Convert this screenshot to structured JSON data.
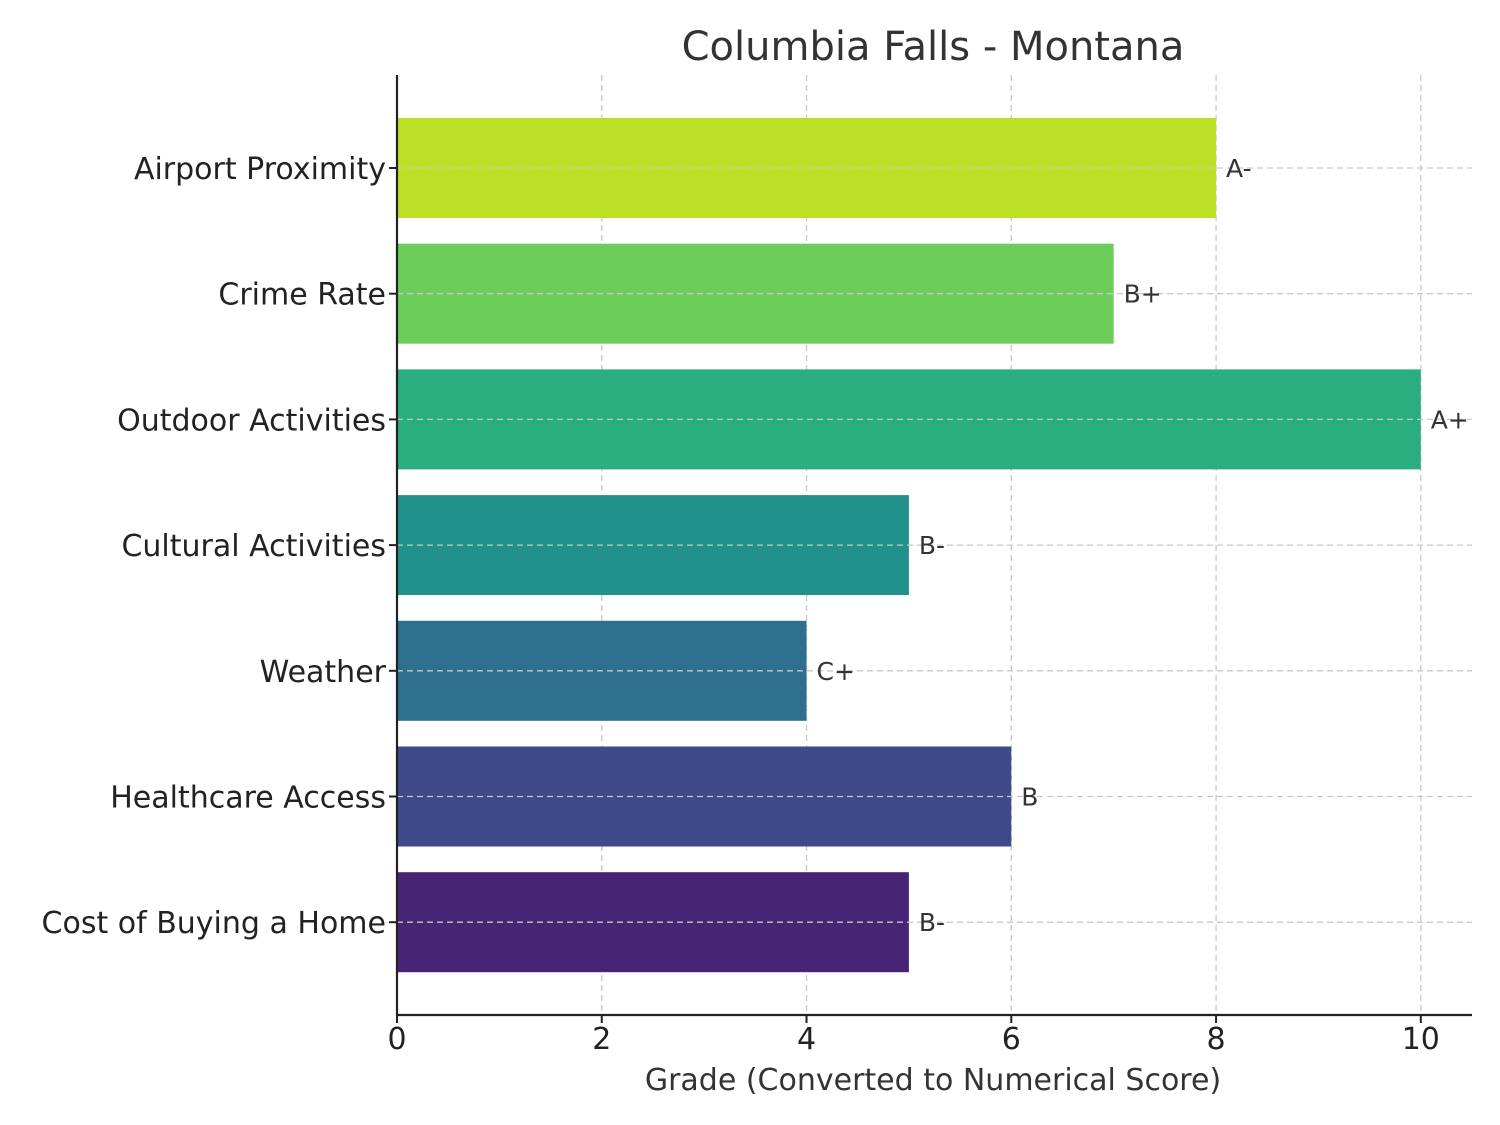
{
  "chart_data": {
    "type": "bar",
    "orientation": "horizontal",
    "title": "Columbia Falls - Montana",
    "xlabel": "Grade (Converted to Numerical Score)",
    "ylabel": "",
    "xlim": [
      0,
      10.5
    ],
    "xticks": [
      0,
      2,
      4,
      6,
      8,
      10
    ],
    "grid": true,
    "categories": [
      "Airport Proximity",
      "Crime Rate",
      "Outdoor Activities",
      "Cultural Activities",
      "Weather",
      "Healthcare Access",
      "Cost of Buying a Home"
    ],
    "values": [
      8,
      7,
      10,
      5,
      4,
      6,
      5
    ],
    "grades": [
      "A-",
      "B+",
      "A+",
      "B-",
      "C+",
      "B",
      "B-"
    ],
    "colors": [
      "#bddf26",
      "#6ccd5a",
      "#29af7f",
      "#21918c",
      "#2e6f8e",
      "#3e4a89",
      "#482475"
    ]
  }
}
